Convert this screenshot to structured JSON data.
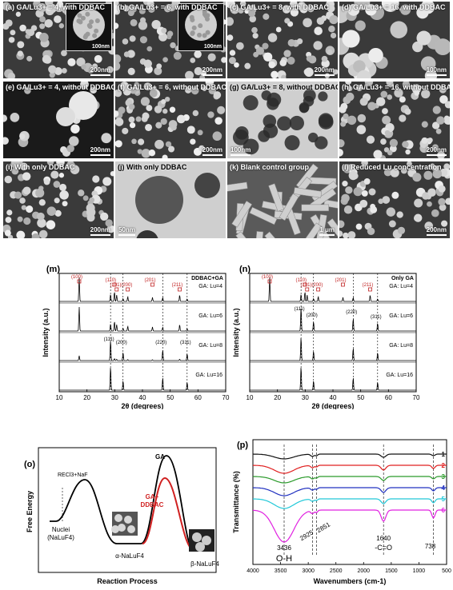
{
  "sem_panels": [
    {
      "label": "(a)",
      "text": "GA/Lu3+ = 4, with DDBAC",
      "scale": "200nm",
      "inset_scale": "100nm",
      "style": "aggregate"
    },
    {
      "label": "(b)",
      "text": "GA/Lu3+ = 6, with DDBAC",
      "scale": "200nm",
      "inset_scale": "100nm",
      "style": "aggregate"
    },
    {
      "label": "(c)",
      "text": "GA/Lu3+ = 8, with DDBAC",
      "scale": "200nm",
      "style": "uniform"
    },
    {
      "label": "(d)",
      "text": "GA/Lu3+ = 16, with DDBAC",
      "scale": "100nm",
      "style": "large"
    },
    {
      "label": "(e)",
      "text": "GA/Lu3+ = 4, without DDBAC",
      "scale": "200nm",
      "style": "dark"
    },
    {
      "label": "(f)",
      "text": "GA/Lu3+ = 6, without DDBAC",
      "scale": "200nm",
      "style": "uniform"
    },
    {
      "label": "(g)",
      "text": "GA/Lu3+ = 8, without DDBAC",
      "scale": "100nm",
      "style": "tem"
    },
    {
      "label": "(h)",
      "text": "GA/Lu3+ = 16, without DDBAC",
      "scale": "200nm",
      "style": "uniform"
    },
    {
      "label": "(i)",
      "text": "With only DDBAC",
      "scale": "200nm",
      "style": "uniform"
    },
    {
      "label": "(j)",
      "text": "With only DDBAC",
      "scale": "50nm",
      "style": "tem2"
    },
    {
      "label": "(k)",
      "text": "Blank control group",
      "scale": "1 μm",
      "style": "rods"
    },
    {
      "label": "(l)",
      "text": "Reduced Lu concentration",
      "scale": "200nm",
      "style": "uniform"
    }
  ],
  "xrd_m": {
    "label": "(m)",
    "tag": "DDBAC+GA",
    "ylabel": "Intensity (a.u.)",
    "xlabel": "2θ (degrees)",
    "ticks": [
      "10",
      "20",
      "30",
      "40",
      "50",
      "60",
      "70"
    ],
    "hex": [
      "(100)",
      "(110)",
      "(101)",
      "(200)",
      "(201)",
      "(211)"
    ],
    "cubic": [
      "(111)",
      "(200)",
      "(220)",
      "(311)"
    ],
    "traces": [
      "GA: Lu=4",
      "GA: Lu=6",
      "GA: Lu=8",
      "GA: Lu=16"
    ]
  },
  "xrd_n": {
    "label": "(n)",
    "tag": "Only GA",
    "ylabel": "Intensity (a.u.)",
    "xlabel": "2θ (degrees)",
    "ticks": [
      "10",
      "20",
      "30",
      "40",
      "50",
      "60",
      "70"
    ],
    "hex": [
      "(100)",
      "(110)",
      "(101)",
      "(200)",
      "(201)",
      "(211)"
    ],
    "cubic": [
      "(111)",
      "(200)",
      "(220)",
      "(311)"
    ],
    "traces": [
      "GA: Lu=4",
      "GA: Lu=6",
      "GA: Lu=8",
      "GA: Lu=16"
    ]
  },
  "energy": {
    "label": "(o)",
    "ylabel": "Free Energy",
    "xlabel": "Reaction Process",
    "reactants": "RECl3+NaF",
    "nuclei": "Nuclei",
    "nuclei_formula": "(NaLuF4)",
    "alpha": "α-NaLuF4",
    "beta": "β-NaLuF4",
    "ga": "GA",
    "ga_ddbac_1": "GA+",
    "ga_ddbac_2": "DDBAC"
  },
  "ftir": {
    "label": "(p)",
    "ylabel": "Transmittance (%)",
    "xlabel": "Wavenumbers (cm-1)",
    "ticks": [
      "4000",
      "3500",
      "3000",
      "2500",
      "2000",
      "1500",
      "1000",
      "500"
    ],
    "peaks": [
      "3436",
      "2925",
      "2851",
      "1640",
      "738"
    ],
    "oh": "O-H",
    "co": "-C=O",
    "series": [
      {
        "name": "1",
        "color": "#111111"
      },
      {
        "name": "2",
        "color": "#e02020"
      },
      {
        "name": "3",
        "color": "#2a9a2a"
      },
      {
        "name": "4",
        "color": "#2030c0"
      },
      {
        "name": "5",
        "color": "#20c8d8"
      },
      {
        "name": "6",
        "color": "#e020e0"
      }
    ]
  }
}
